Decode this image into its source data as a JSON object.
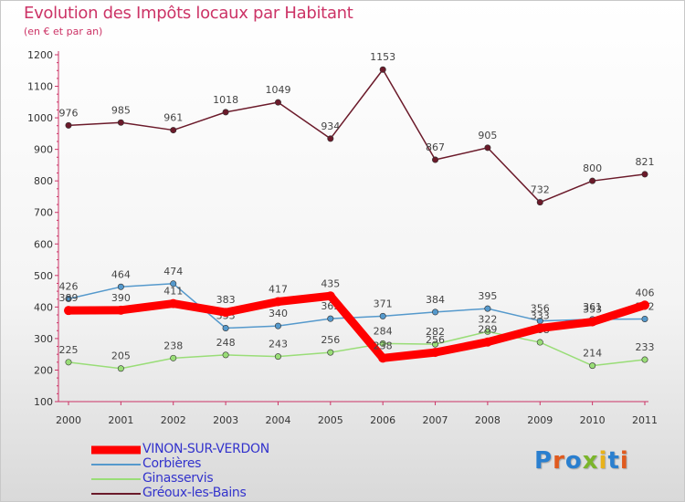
{
  "title": "Evolution des Impôts locaux par Habitant",
  "subtitle": "(en € et par an)",
  "logo": {
    "text": "Proxiti",
    "colors": [
      "#2a7fcf",
      "#e05a1e",
      "#2a7fcf",
      "#7bb52b",
      "#e8b21a",
      "#2a7fcf",
      "#e05a1e"
    ]
  },
  "chart_data": {
    "type": "line",
    "x": [
      "2000",
      "2001",
      "2002",
      "2003",
      "2004",
      "2005",
      "2006",
      "2007",
      "2008",
      "2009",
      "2010",
      "2011"
    ],
    "ylim": [
      100,
      1200
    ],
    "yticks": [
      100,
      200,
      300,
      400,
      500,
      600,
      700,
      800,
      900,
      1000,
      1100,
      1200
    ],
    "grid": false,
    "legend_position": "bottom-left",
    "series": [
      {
        "name": "Gréoux-les-Bains",
        "color": "#6b1a2a",
        "values": [
          976,
          985,
          961,
          1018,
          1049,
          934,
          1153,
          867,
          905,
          732,
          800,
          821
        ],
        "labels": [
          "976",
          "985",
          "961",
          "1018",
          "1049",
          "934",
          "1153",
          "867",
          "905",
          "732",
          "800",
          "821"
        ]
      },
      {
        "name": "Ginasservis",
        "color": "#99dd77",
        "values": [
          225,
          205,
          238,
          248,
          243,
          256,
          284,
          282,
          322,
          288,
          214,
          233
        ],
        "labels": [
          "225",
          "205",
          "238",
          "248",
          "243",
          "256",
          "284",
          "282",
          "322",
          "288",
          "214",
          "233"
        ]
      },
      {
        "name": "Corbières",
        "color": "#5599cc",
        "values": [
          426,
          464,
          474,
          333,
          340,
          363,
          371,
          384,
          395,
          356,
          361,
          362
        ],
        "labels": [
          "426",
          "464",
          "474",
          "333",
          "340",
          "363",
          "371",
          "384",
          "395",
          "356",
          "361",
          "362"
        ]
      },
      {
        "name": "VINON-SUR-VERDON",
        "color": "#ff0000",
        "values": [
          389,
          390,
          411,
          383,
          417,
          435,
          238,
          256,
          289,
          333,
          353,
          406
        ],
        "labels": [
          "389",
          "390",
          "411",
          "383",
          "417",
          "435",
          "238",
          "256",
          "289",
          "333",
          "353",
          "406"
        ]
      }
    ],
    "legend": [
      {
        "name": "VINON-SUR-VERDON",
        "color": "#ff0000",
        "width": 9
      },
      {
        "name": "Corbières",
        "color": "#5599cc",
        "width": 2
      },
      {
        "name": "Ginasservis",
        "color": "#99dd77",
        "width": 2
      },
      {
        "name": "Gréoux-les-Bains",
        "color": "#6b1a2a",
        "width": 2
      }
    ]
  }
}
